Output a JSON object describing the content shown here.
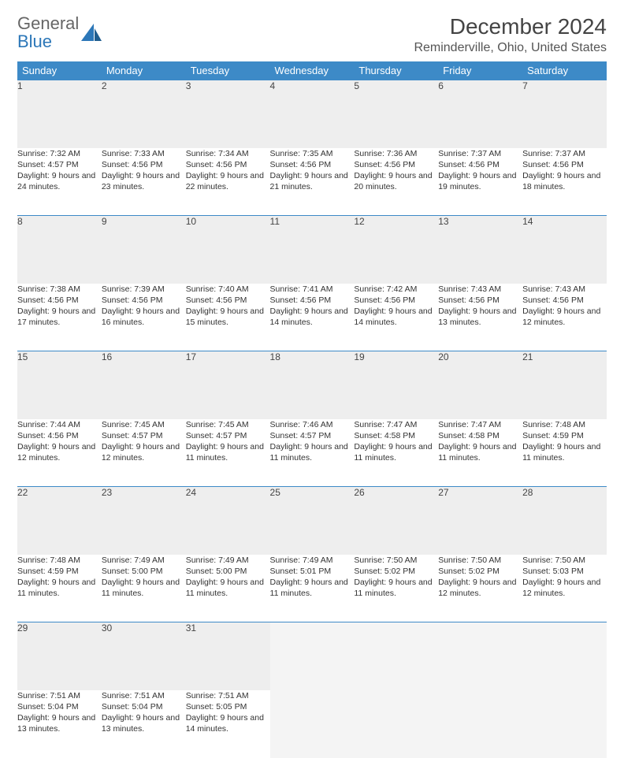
{
  "logo": {
    "line1": "General",
    "line2": "Blue"
  },
  "header": {
    "month_title": "December 2024",
    "location": "Reminderville, Ohio, United States"
  },
  "colors": {
    "header_bg": "#3d8ac7",
    "header_fg": "#ffffff",
    "daynum_bg": "#eeeeee",
    "rule": "#3d8ac7",
    "logo_gray": "#666666",
    "logo_blue": "#2c77b8"
  },
  "day_names": [
    "Sunday",
    "Monday",
    "Tuesday",
    "Wednesday",
    "Thursday",
    "Friday",
    "Saturday"
  ],
  "weeks": [
    [
      {
        "n": "1",
        "sr": "7:32 AM",
        "ss": "4:57 PM",
        "dl": "9 hours and 24 minutes."
      },
      {
        "n": "2",
        "sr": "7:33 AM",
        "ss": "4:56 PM",
        "dl": "9 hours and 23 minutes."
      },
      {
        "n": "3",
        "sr": "7:34 AM",
        "ss": "4:56 PM",
        "dl": "9 hours and 22 minutes."
      },
      {
        "n": "4",
        "sr": "7:35 AM",
        "ss": "4:56 PM",
        "dl": "9 hours and 21 minutes."
      },
      {
        "n": "5",
        "sr": "7:36 AM",
        "ss": "4:56 PM",
        "dl": "9 hours and 20 minutes."
      },
      {
        "n": "6",
        "sr": "7:37 AM",
        "ss": "4:56 PM",
        "dl": "9 hours and 19 minutes."
      },
      {
        "n": "7",
        "sr": "7:37 AM",
        "ss": "4:56 PM",
        "dl": "9 hours and 18 minutes."
      }
    ],
    [
      {
        "n": "8",
        "sr": "7:38 AM",
        "ss": "4:56 PM",
        "dl": "9 hours and 17 minutes."
      },
      {
        "n": "9",
        "sr": "7:39 AM",
        "ss": "4:56 PM",
        "dl": "9 hours and 16 minutes."
      },
      {
        "n": "10",
        "sr": "7:40 AM",
        "ss": "4:56 PM",
        "dl": "9 hours and 15 minutes."
      },
      {
        "n": "11",
        "sr": "7:41 AM",
        "ss": "4:56 PM",
        "dl": "9 hours and 14 minutes."
      },
      {
        "n": "12",
        "sr": "7:42 AM",
        "ss": "4:56 PM",
        "dl": "9 hours and 14 minutes."
      },
      {
        "n": "13",
        "sr": "7:43 AM",
        "ss": "4:56 PM",
        "dl": "9 hours and 13 minutes."
      },
      {
        "n": "14",
        "sr": "7:43 AM",
        "ss": "4:56 PM",
        "dl": "9 hours and 12 minutes."
      }
    ],
    [
      {
        "n": "15",
        "sr": "7:44 AM",
        "ss": "4:56 PM",
        "dl": "9 hours and 12 minutes."
      },
      {
        "n": "16",
        "sr": "7:45 AM",
        "ss": "4:57 PM",
        "dl": "9 hours and 12 minutes."
      },
      {
        "n": "17",
        "sr": "7:45 AM",
        "ss": "4:57 PM",
        "dl": "9 hours and 11 minutes."
      },
      {
        "n": "18",
        "sr": "7:46 AM",
        "ss": "4:57 PM",
        "dl": "9 hours and 11 minutes."
      },
      {
        "n": "19",
        "sr": "7:47 AM",
        "ss": "4:58 PM",
        "dl": "9 hours and 11 minutes."
      },
      {
        "n": "20",
        "sr": "7:47 AM",
        "ss": "4:58 PM",
        "dl": "9 hours and 11 minutes."
      },
      {
        "n": "21",
        "sr": "7:48 AM",
        "ss": "4:59 PM",
        "dl": "9 hours and 11 minutes."
      }
    ],
    [
      {
        "n": "22",
        "sr": "7:48 AM",
        "ss": "4:59 PM",
        "dl": "9 hours and 11 minutes."
      },
      {
        "n": "23",
        "sr": "7:49 AM",
        "ss": "5:00 PM",
        "dl": "9 hours and 11 minutes."
      },
      {
        "n": "24",
        "sr": "7:49 AM",
        "ss": "5:00 PM",
        "dl": "9 hours and 11 minutes."
      },
      {
        "n": "25",
        "sr": "7:49 AM",
        "ss": "5:01 PM",
        "dl": "9 hours and 11 minutes."
      },
      {
        "n": "26",
        "sr": "7:50 AM",
        "ss": "5:02 PM",
        "dl": "9 hours and 11 minutes."
      },
      {
        "n": "27",
        "sr": "7:50 AM",
        "ss": "5:02 PM",
        "dl": "9 hours and 12 minutes."
      },
      {
        "n": "28",
        "sr": "7:50 AM",
        "ss": "5:03 PM",
        "dl": "9 hours and 12 minutes."
      }
    ],
    [
      {
        "n": "29",
        "sr": "7:51 AM",
        "ss": "5:04 PM",
        "dl": "9 hours and 13 minutes."
      },
      {
        "n": "30",
        "sr": "7:51 AM",
        "ss": "5:04 PM",
        "dl": "9 hours and 13 minutes."
      },
      {
        "n": "31",
        "sr": "7:51 AM",
        "ss": "5:05 PM",
        "dl": "9 hours and 14 minutes."
      },
      null,
      null,
      null,
      null
    ]
  ],
  "labels": {
    "sunrise": "Sunrise:",
    "sunset": "Sunset:",
    "daylight": "Daylight:"
  }
}
